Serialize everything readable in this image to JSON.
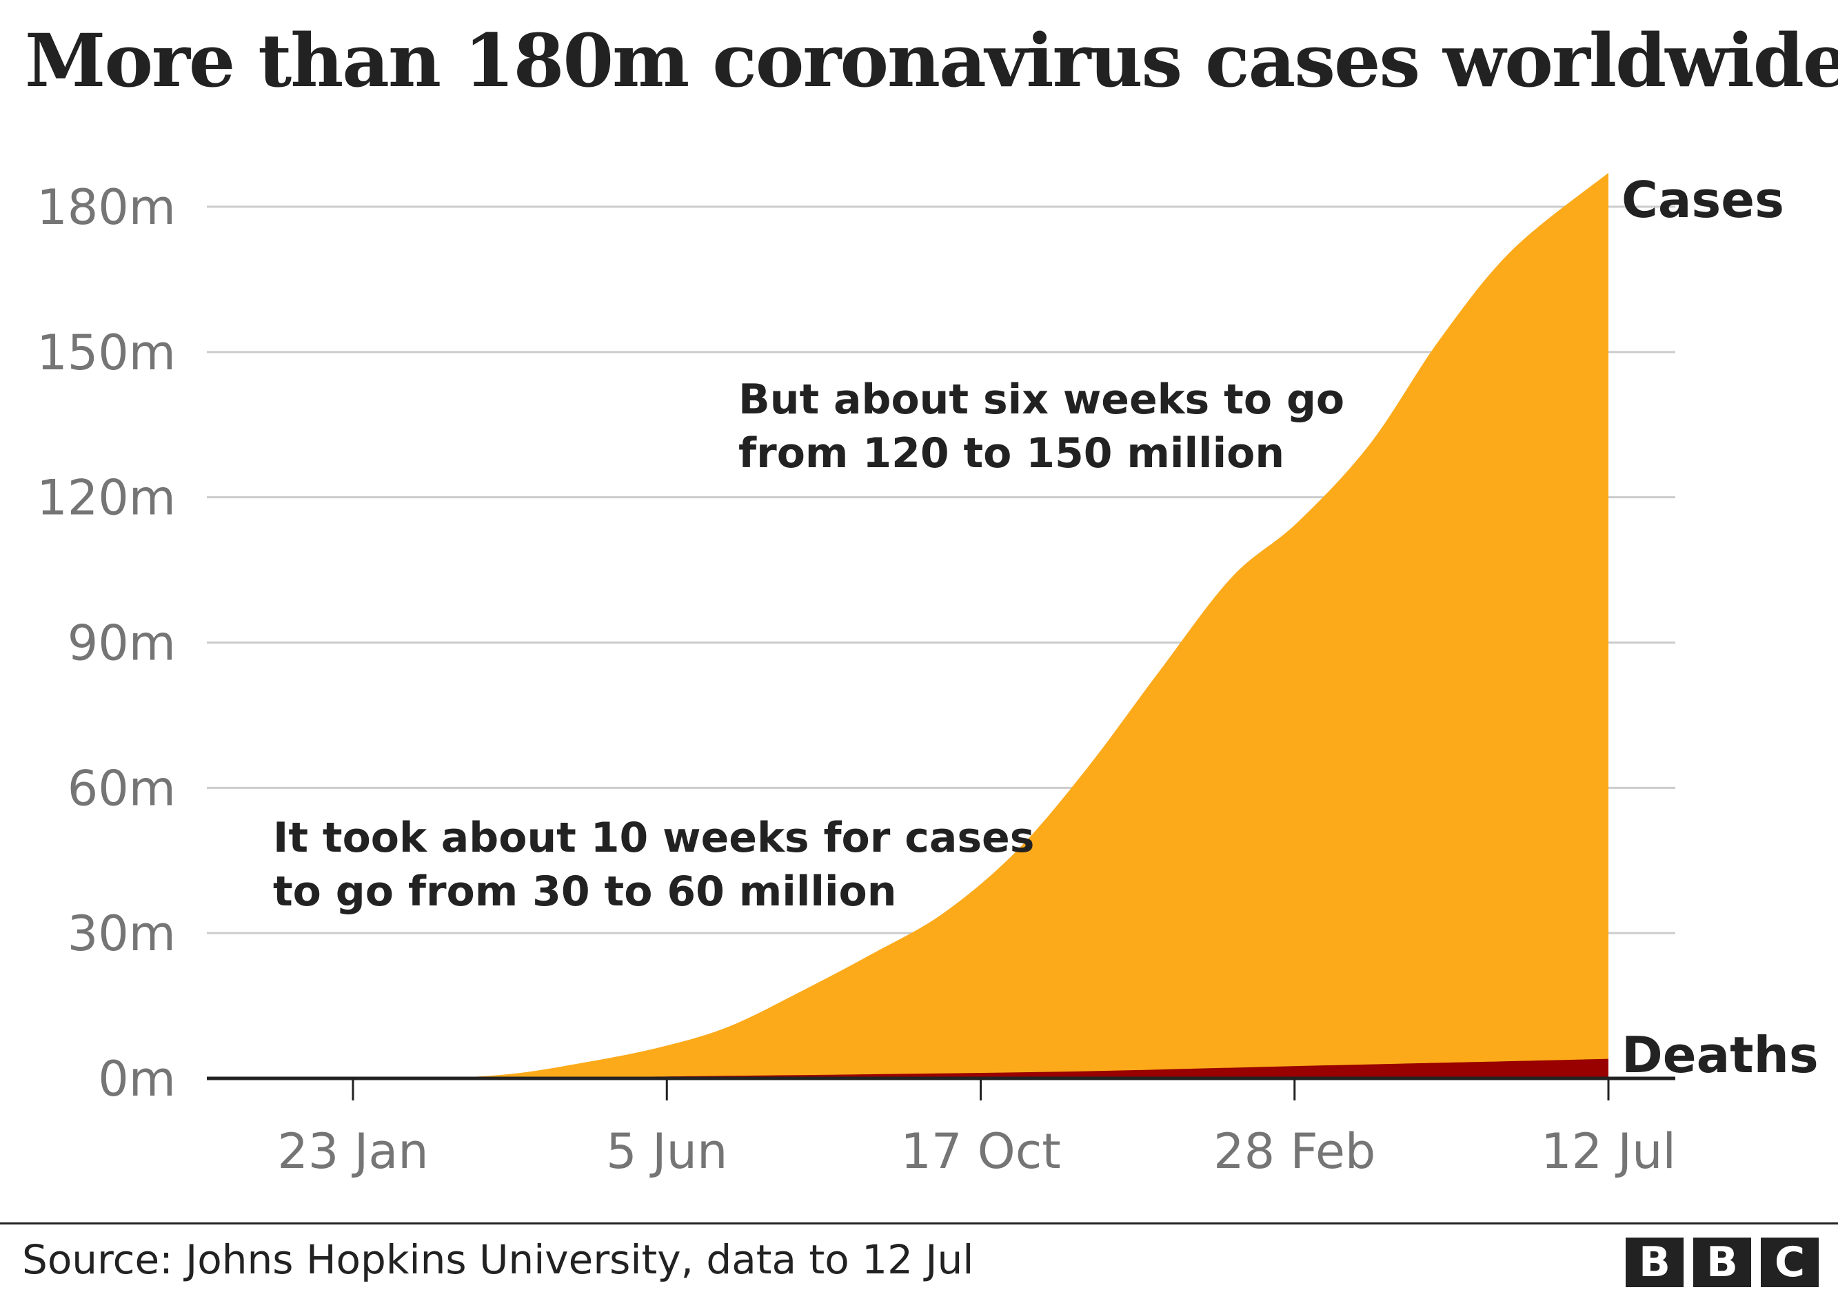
{
  "chart_data": {
    "type": "area",
    "title": "More than 180m coronavirus cases worldwide",
    "ylim": [
      0,
      180
    ],
    "y_ticks": [
      "0m",
      "30m",
      "60m",
      "90m",
      "120m",
      "150m",
      "180m"
    ],
    "y_tick_values": [
      0,
      30,
      60,
      90,
      120,
      150,
      180
    ],
    "x_tick_labels": [
      "23 Jan",
      "5 Jun",
      "17 Oct",
      "28 Feb",
      "12 Jul"
    ],
    "x_tick_dates": [
      "2020-01-23",
      "2020-06-05",
      "2020-10-17",
      "2021-02-28",
      "2021-07-12"
    ],
    "x_range": [
      "2020-01-01",
      "2021-07-12"
    ],
    "grid": true,
    "series": [
      {
        "name": "Cases",
        "color": "#fcaa1a",
        "x": [
          "2020-01-22",
          "2020-03-01",
          "2020-04-01",
          "2020-05-01",
          "2020-06-01",
          "2020-07-01",
          "2020-08-01",
          "2020-09-01",
          "2020-10-01",
          "2020-11-01",
          "2020-12-01",
          "2021-01-01",
          "2021-02-01",
          "2021-03-01",
          "2021-04-01",
          "2021-05-01",
          "2021-06-01",
          "2021-07-12"
        ],
        "y": [
          0,
          0.1,
          1,
          3.3,
          6.3,
          10.6,
          17.9,
          25.8,
          34.1,
          46.8,
          63.8,
          83.9,
          103.4,
          114.7,
          130.9,
          152.6,
          171.1,
          187
        ]
      },
      {
        "name": "Deaths",
        "color": "#990000",
        "x": [
          "2020-01-22",
          "2020-04-01",
          "2020-06-01",
          "2020-09-01",
          "2020-12-01",
          "2021-03-01",
          "2021-06-01",
          "2021-07-12"
        ],
        "y": [
          0,
          0.05,
          0.37,
          0.86,
          1.48,
          2.55,
          3.56,
          4.04
        ]
      }
    ],
    "annotations": [
      {
        "lines": [
          "But about six weeks to go",
          "from 120 to 150 million"
        ]
      },
      {
        "lines": [
          "It took about 10 weeks for cases",
          "to go from 30 to 60 million"
        ]
      }
    ]
  },
  "footer": {
    "source": "Source: Johns Hopkins University, data to 12 Jul",
    "logo_letters": [
      "B",
      "B",
      "C"
    ]
  }
}
